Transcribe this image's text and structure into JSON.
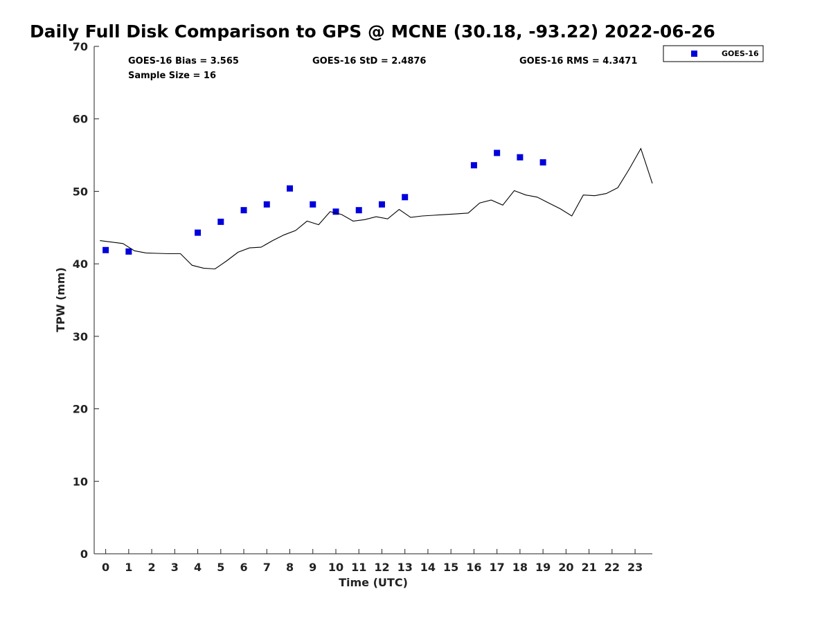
{
  "chart_data": {
    "type": "scatter",
    "title": "Daily Full Disk Comparison to GPS @ MCNE (30.18, -93.22) 2022-06-26",
    "xlabel": "Time (UTC)",
    "ylabel": "TPW (mm)",
    "xlim": [
      -0.5,
      23.75
    ],
    "ylim": [
      0,
      70
    ],
    "x_ticks": [
      0,
      1,
      2,
      3,
      4,
      5,
      6,
      7,
      8,
      9,
      10,
      11,
      12,
      13,
      14,
      15,
      16,
      17,
      18,
      19,
      20,
      21,
      22,
      23
    ],
    "y_ticks": [
      0,
      10,
      20,
      30,
      40,
      50,
      60,
      70
    ],
    "grid": false,
    "legend_position": "top-right outside",
    "stats": {
      "bias": "GOES-16 Bias = 3.565",
      "std": "GOES-16 StD = 2.4876",
      "rms": "GOES-16 RMS = 4.3471",
      "sample": "Sample Size = 16"
    },
    "series": [
      {
        "name": "GOES-16",
        "kind": "markers",
        "marker": "square",
        "color": "#0000dd",
        "x": [
          0,
          1,
          4,
          5,
          6,
          7,
          8,
          9,
          10,
          11,
          12,
          13,
          16,
          17,
          18,
          19
        ],
        "y": [
          41.9,
          41.7,
          44.3,
          45.8,
          47.4,
          48.2,
          50.4,
          48.2,
          47.2,
          47.4,
          48.2,
          49.2,
          53.6,
          55.3,
          54.7,
          54.0
        ]
      },
      {
        "kind": "line",
        "color": "#000000",
        "x": [
          -0.25,
          0.25,
          0.75,
          1.25,
          1.75,
          2.25,
          2.75,
          3.25,
          3.75,
          4.25,
          4.75,
          5.25,
          5.75,
          6.25,
          6.75,
          7.25,
          7.75,
          8.25,
          8.75,
          9.25,
          9.75,
          10.25,
          10.75,
          11.25,
          11.75,
          12.25,
          12.75,
          13.25,
          13.75,
          14.25,
          14.75,
          15.25,
          15.75,
          16.25,
          16.75,
          17.25,
          17.75,
          18.25,
          18.75,
          19.25,
          19.75,
          20.25,
          20.75,
          21.25,
          21.75,
          22.25,
          22.75,
          23.25,
          23.75
        ],
        "y": [
          43.2,
          43.0,
          42.8,
          41.8,
          41.5,
          41.45,
          41.4,
          41.4,
          39.8,
          39.4,
          39.3,
          40.4,
          41.6,
          42.2,
          42.3,
          43.2,
          44.0,
          44.6,
          45.9,
          45.4,
          47.2,
          46.8,
          45.9,
          46.1,
          46.5,
          46.2,
          47.5,
          46.4,
          46.6,
          46.7,
          46.8,
          46.9,
          47.0,
          48.4,
          48.8,
          48.1,
          50.1,
          49.5,
          49.2,
          48.4,
          47.6,
          46.6,
          49.5,
          49.4,
          49.7,
          50.5,
          53.1,
          55.9,
          51.1
        ]
      }
    ]
  }
}
